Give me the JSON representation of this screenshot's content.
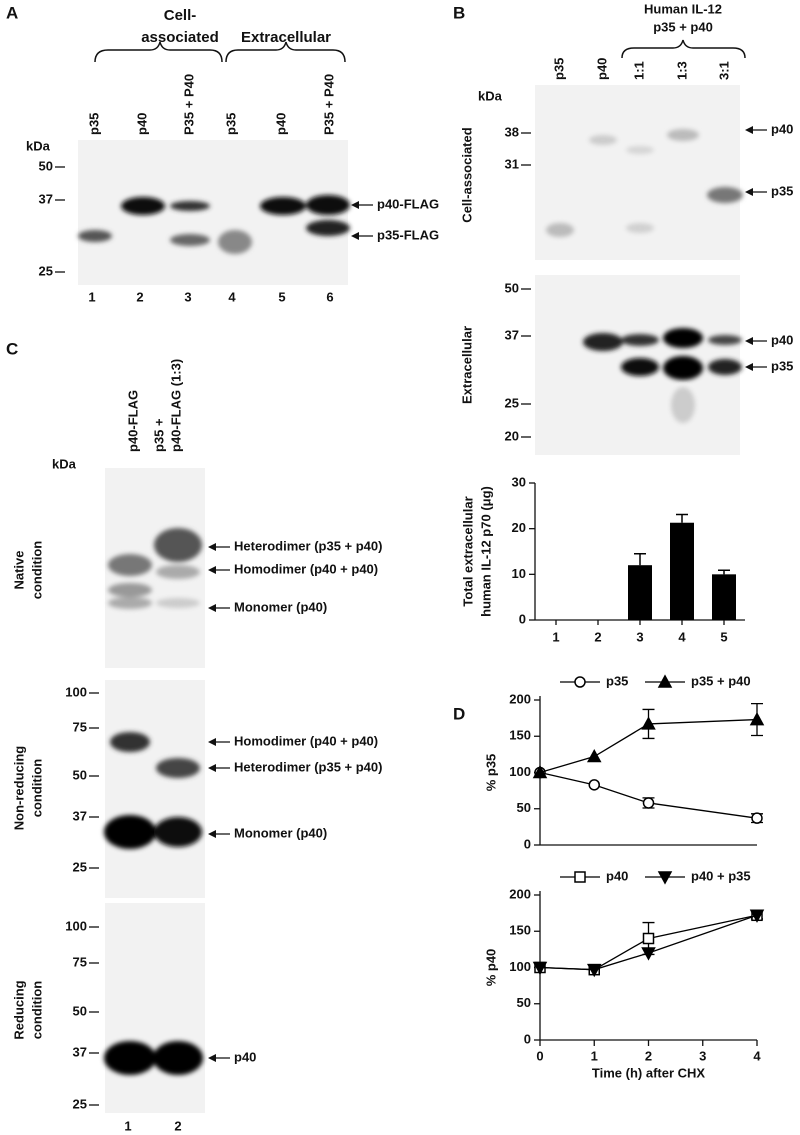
{
  "panels": {
    "A": {
      "label": "A",
      "group_labels": [
        "Cell-",
        "associated",
        "Extracellular"
      ],
      "lanes": [
        "p35",
        "p40",
        "P35 + P40",
        "p35",
        "p40",
        "P35 + P40"
      ],
      "unit": "kDa",
      "markers": [
        50,
        37,
        25
      ],
      "bands": [
        "p40-FLAG",
        "p35-FLAG"
      ],
      "lane_numbers": [
        1,
        2,
        3,
        4,
        5,
        6
      ]
    },
    "B": {
      "label": "B",
      "header": [
        "Human IL-12",
        "p35 + p40"
      ],
      "lanes": [
        "p35",
        "p40",
        "1:1",
        "1:3",
        "3:1"
      ],
      "unit": "kDa",
      "blots": [
        {
          "name": "Cell-associated",
          "markers": [
            38,
            31
          ],
          "bands": [
            "p40",
            "p35"
          ]
        },
        {
          "name": "Extracellular",
          "markers": [
            50,
            37,
            25,
            20
          ],
          "bands": [
            "p40",
            "p35"
          ]
        }
      ]
    },
    "C": {
      "label": "C",
      "lanes": [
        "p40-FLAG",
        "p35 +",
        "p40-FLAG (1:3)"
      ],
      "unit": "kDa",
      "blots": [
        {
          "name": [
            "Native",
            "condition"
          ],
          "markers": [],
          "bands": [
            "Heterodimer (p35 + p40)",
            "Homodimer (p40 + p40)",
            "Monomer (p40)"
          ]
        },
        {
          "name": [
            "Non-reducing",
            "condition"
          ],
          "markers": [
            100,
            75,
            50,
            37,
            25
          ],
          "bands": [
            "Homodimer (p40 + p40)",
            "Heterodimer (p35 + p40)",
            "Monomer (p40)"
          ]
        },
        {
          "name": [
            "Reducing",
            "condition"
          ],
          "markers": [
            100,
            75,
            50,
            37,
            25
          ],
          "bands": [
            "p40"
          ]
        }
      ],
      "lane_numbers": [
        1,
        2
      ]
    },
    "D": {
      "label": "D"
    }
  },
  "chart_data": [
    {
      "type": "bar",
      "ylabel": [
        "Total extracellular",
        "human IL-12 p70 (μg)"
      ],
      "categories": [
        "1",
        "2",
        "3",
        "4",
        "5"
      ],
      "values": [
        0,
        0,
        12,
        21.3,
        10
      ],
      "errors": [
        null,
        null,
        2.5,
        1.8,
        0.9
      ],
      "color": "#000000",
      "ylim": [
        0,
        30
      ],
      "yticks": [
        0,
        10,
        20,
        30
      ]
    },
    {
      "type": "line",
      "ylabel": "% p35",
      "x": [
        0,
        1,
        2,
        4
      ],
      "xlim": [
        0,
        4
      ],
      "ylim": [
        0,
        200
      ],
      "yticks": [
        0,
        50,
        100,
        150,
        200
      ],
      "series": [
        {
          "name": "p35",
          "color": "#000000",
          "marker": "circle-open",
          "values": [
            100,
            83,
            58,
            37
          ],
          "errors": [
            null,
            null,
            7,
            6
          ]
        },
        {
          "name": "p35 + p40",
          "color": "#000000",
          "marker": "triangle",
          "values": [
            100,
            122,
            167,
            173
          ],
          "errors": [
            null,
            null,
            20,
            22
          ]
        }
      ]
    },
    {
      "type": "line",
      "ylabel": "% p40",
      "xlabel": "Time (h) after CHX",
      "x": [
        0,
        1,
        2,
        4
      ],
      "xlim": [
        0,
        4
      ],
      "xticks": [
        0,
        1,
        2,
        3,
        4
      ],
      "ylim": [
        0,
        200
      ],
      "yticks": [
        0,
        50,
        100,
        150,
        200
      ],
      "series": [
        {
          "name": "p40",
          "color": "#000000",
          "marker": "square-open",
          "values": [
            100,
            97,
            140,
            172
          ],
          "errors": [
            null,
            null,
            22,
            5
          ]
        },
        {
          "name": "p40 + p35",
          "color": "#000000",
          "marker": "triangle-down",
          "values": [
            100,
            97,
            120,
            172
          ],
          "errors": [
            null,
            null,
            null,
            null
          ]
        }
      ]
    }
  ]
}
